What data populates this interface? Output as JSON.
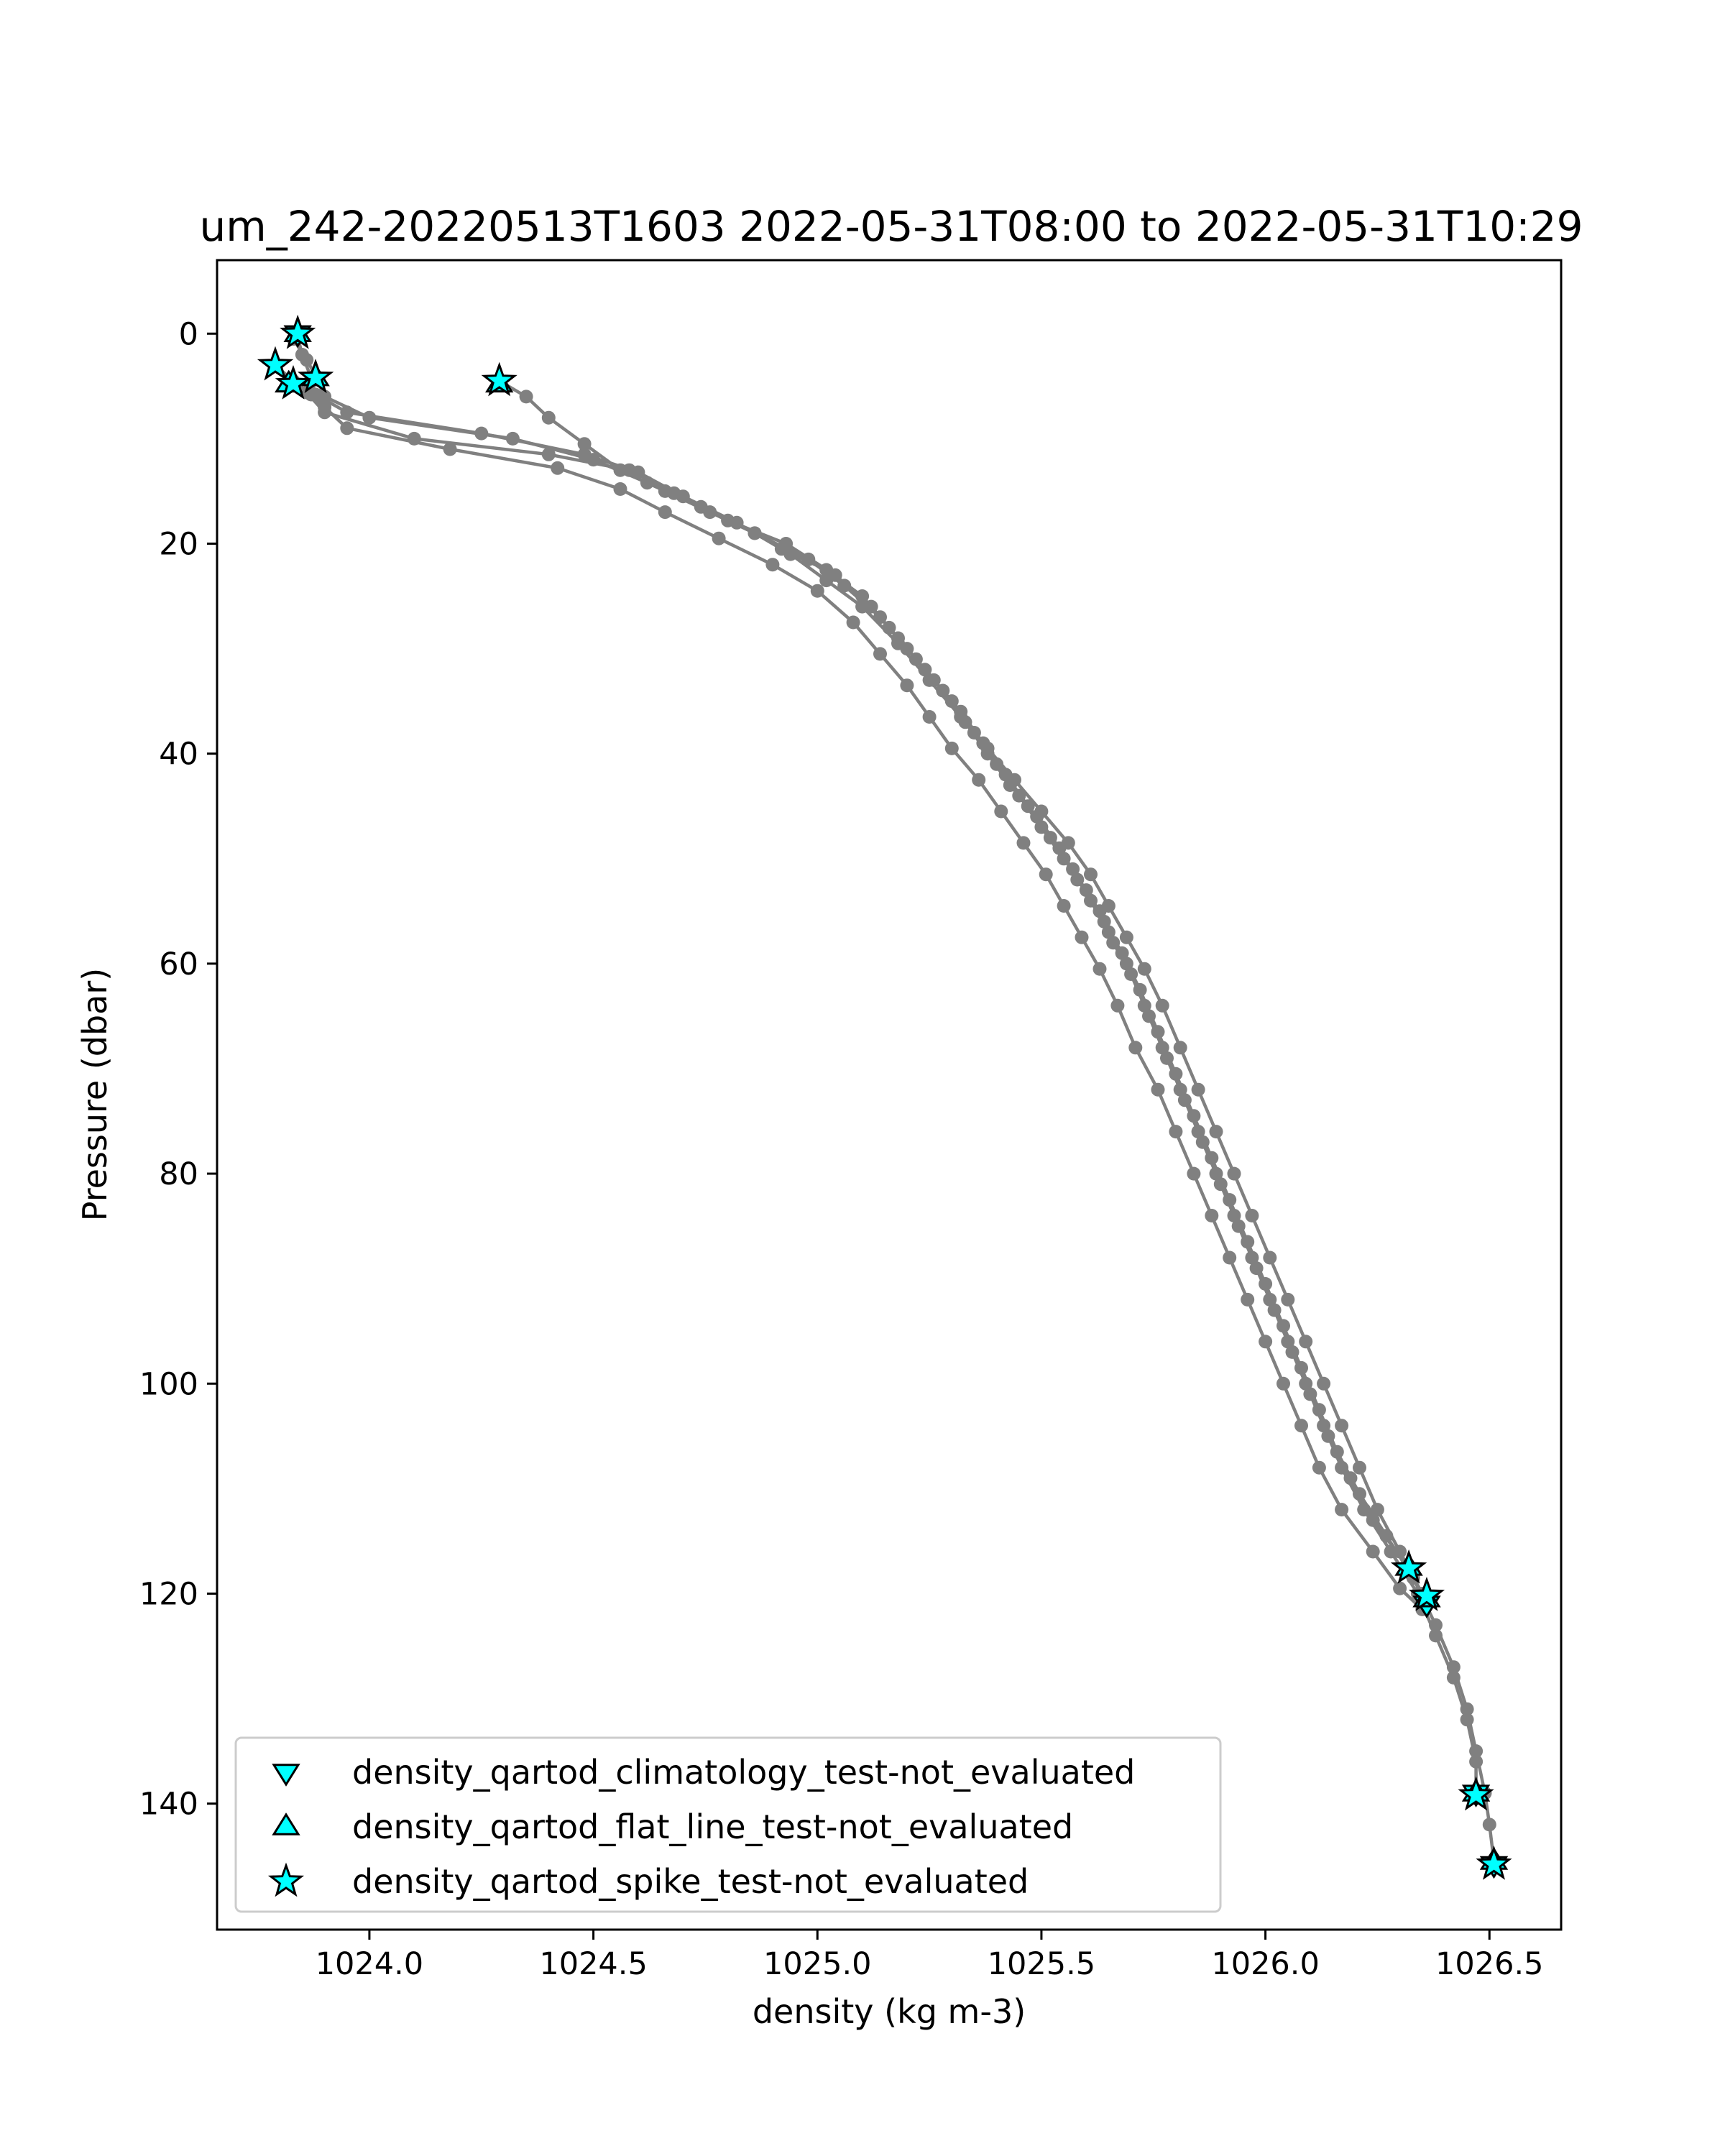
{
  "chart_data": {
    "type": "line",
    "title": "um_242-20220513T1603 2022-05-31T08:00 to 2022-05-31T10:29",
    "xlabel": "density (kg m-3)",
    "ylabel": "Pressure (dbar)",
    "xlim": [
      1023.66,
      1026.66
    ],
    "ylim": [
      152,
      -7
    ],
    "y_inverted": true,
    "xticks": [
      1024.0,
      1024.5,
      1025.0,
      1025.5,
      1026.0,
      1026.5
    ],
    "yticks": [
      0,
      20,
      40,
      60,
      80,
      100,
      120,
      140
    ],
    "xtick_labels": [
      "1024.0",
      "1024.5",
      "1025.0",
      "1025.5",
      "1026.0",
      "1026.5"
    ],
    "ytick_labels": [
      "0",
      "20",
      "40",
      "60",
      "80",
      "100",
      "120",
      "140"
    ],
    "grid": false,
    "line_color": "#808080",
    "marker_color": "#00ffff",
    "legend_position": "lower-left",
    "series": [
      {
        "points": [
          [
            1023.84,
            0.3
          ],
          [
            1023.85,
            2.0
          ],
          [
            1023.87,
            4.2
          ],
          [
            1023.88,
            5.8
          ],
          [
            1023.95,
            7.5
          ],
          [
            1024.25,
            9.5
          ],
          [
            1024.48,
            11.5
          ],
          [
            1024.6,
            13.2
          ],
          [
            1024.7,
            15.5
          ],
          [
            1024.82,
            18.0
          ],
          [
            1024.92,
            20.5
          ],
          [
            1025.02,
            22.5
          ],
          [
            1025.1,
            25.0
          ],
          [
            1025.16,
            28.0
          ],
          [
            1025.22,
            31.0
          ],
          [
            1025.28,
            34.0
          ],
          [
            1025.33,
            37.0
          ],
          [
            1025.38,
            40.0
          ],
          [
            1025.43,
            43.0
          ],
          [
            1025.49,
            46.0
          ],
          [
            1025.54,
            49.0
          ],
          [
            1025.58,
            52.0
          ],
          [
            1025.63,
            55.0
          ],
          [
            1025.66,
            58.0
          ],
          [
            1025.7,
            61.0
          ],
          [
            1025.74,
            65.0
          ],
          [
            1025.78,
            69.0
          ],
          [
            1025.82,
            73.0
          ],
          [
            1025.86,
            77.0
          ],
          [
            1025.9,
            81.0
          ],
          [
            1025.94,
            85.0
          ],
          [
            1025.98,
            89.0
          ],
          [
            1026.02,
            93.0
          ],
          [
            1026.06,
            97.0
          ],
          [
            1026.1,
            101.0
          ],
          [
            1026.14,
            105.0
          ],
          [
            1026.19,
            109.0
          ],
          [
            1026.24,
            113.0
          ],
          [
            1026.32,
            117.6
          ],
          [
            1026.36,
            121.0
          ]
        ]
      },
      {
        "points": [
          [
            1023.83,
            0.5
          ],
          [
            1023.86,
            2.5
          ],
          [
            1023.88,
            4.0
          ],
          [
            1023.9,
            6.0
          ],
          [
            1024.0,
            8.0
          ],
          [
            1024.32,
            10.0
          ],
          [
            1024.5,
            12.0
          ],
          [
            1024.62,
            14.2
          ],
          [
            1024.74,
            16.5
          ],
          [
            1024.86,
            19.0
          ],
          [
            1024.98,
            21.5
          ],
          [
            1025.06,
            24.0
          ],
          [
            1025.14,
            27.0
          ],
          [
            1025.2,
            30.0
          ],
          [
            1025.26,
            33.0
          ],
          [
            1025.32,
            36.0
          ],
          [
            1025.37,
            39.0
          ],
          [
            1025.42,
            42.0
          ],
          [
            1025.47,
            45.0
          ],
          [
            1025.52,
            48.0
          ],
          [
            1025.57,
            51.0
          ],
          [
            1025.61,
            54.0
          ],
          [
            1025.65,
            57.0
          ],
          [
            1025.69,
            60.0
          ],
          [
            1025.73,
            64.0
          ],
          [
            1025.77,
            68.0
          ],
          [
            1025.81,
            72.0
          ],
          [
            1025.85,
            76.0
          ],
          [
            1025.89,
            80.0
          ],
          [
            1025.93,
            84.0
          ],
          [
            1025.97,
            88.0
          ],
          [
            1026.01,
            92.0
          ],
          [
            1026.05,
            96.0
          ],
          [
            1026.09,
            100.0
          ],
          [
            1026.13,
            104.0
          ],
          [
            1026.17,
            108.0
          ],
          [
            1026.22,
            112.0
          ],
          [
            1026.28,
            116.0
          ],
          [
            1026.34,
            120.0
          ],
          [
            1026.38,
            124.0
          ],
          [
            1026.42,
            128.0
          ],
          [
            1026.45,
            132.0
          ],
          [
            1026.47,
            136.0
          ],
          [
            1026.47,
            139.2
          ]
        ]
      },
      {
        "points": [
          [
            1023.79,
            3.0
          ],
          [
            1023.83,
            4.5
          ],
          [
            1023.87,
            5.8
          ],
          [
            1023.9,
            7.0
          ],
          [
            1023.95,
            9.0
          ],
          [
            1024.18,
            11.0
          ],
          [
            1024.42,
            12.8
          ],
          [
            1024.56,
            14.8
          ],
          [
            1024.66,
            17.0
          ],
          [
            1024.78,
            19.5
          ],
          [
            1024.9,
            22.0
          ],
          [
            1025.0,
            24.5
          ],
          [
            1025.08,
            27.5
          ],
          [
            1025.14,
            30.5
          ],
          [
            1025.2,
            33.5
          ],
          [
            1025.25,
            36.5
          ],
          [
            1025.3,
            39.5
          ],
          [
            1025.36,
            42.5
          ],
          [
            1025.41,
            45.5
          ],
          [
            1025.46,
            48.5
          ],
          [
            1025.51,
            51.5
          ],
          [
            1025.55,
            54.5
          ],
          [
            1025.59,
            57.5
          ],
          [
            1025.63,
            60.5
          ],
          [
            1025.67,
            64.0
          ],
          [
            1025.71,
            68.0
          ],
          [
            1025.76,
            72.0
          ],
          [
            1025.8,
            76.0
          ],
          [
            1025.84,
            80.0
          ],
          [
            1025.88,
            84.0
          ],
          [
            1025.92,
            88.0
          ],
          [
            1025.96,
            92.0
          ],
          [
            1026.0,
            96.0
          ],
          [
            1026.04,
            100.0
          ],
          [
            1026.08,
            104.0
          ],
          [
            1026.12,
            108.0
          ],
          [
            1026.17,
            112.0
          ],
          [
            1026.24,
            116.0
          ],
          [
            1026.3,
            119.5
          ],
          [
            1026.35,
            121.5
          ]
        ]
      },
      {
        "points": [
          [
            1023.82,
            4.8
          ],
          [
            1023.86,
            5.6
          ],
          [
            1023.9,
            7.5
          ],
          [
            1024.1,
            10.0
          ],
          [
            1024.4,
            11.5
          ],
          [
            1024.58,
            13.0
          ],
          [
            1024.68,
            15.2
          ],
          [
            1024.8,
            17.8
          ],
          [
            1024.93,
            20.0
          ],
          [
            1025.04,
            23.0
          ],
          [
            1025.12,
            26.0
          ],
          [
            1025.18,
            29.0
          ],
          [
            1025.24,
            32.0
          ],
          [
            1025.3,
            35.0
          ],
          [
            1025.35,
            38.0
          ],
          [
            1025.4,
            41.0
          ],
          [
            1025.45,
            44.0
          ],
          [
            1025.5,
            47.0
          ],
          [
            1025.55,
            50.0
          ],
          [
            1025.6,
            53.0
          ],
          [
            1025.64,
            56.0
          ],
          [
            1025.68,
            59.0
          ],
          [
            1025.72,
            62.5
          ],
          [
            1025.76,
            66.5
          ],
          [
            1025.8,
            70.5
          ],
          [
            1025.84,
            74.5
          ],
          [
            1025.88,
            78.5
          ],
          [
            1025.92,
            82.5
          ],
          [
            1025.96,
            86.5
          ],
          [
            1026.0,
            90.5
          ],
          [
            1026.04,
            94.5
          ],
          [
            1026.08,
            98.5
          ],
          [
            1026.12,
            102.5
          ],
          [
            1026.16,
            106.5
          ],
          [
            1026.21,
            110.5
          ],
          [
            1026.27,
            114.5
          ],
          [
            1026.33,
            118.5
          ],
          [
            1026.38,
            123.0
          ],
          [
            1026.42,
            127.0
          ],
          [
            1026.45,
            131.0
          ],
          [
            1026.47,
            135.0
          ],
          [
            1026.49,
            139.0
          ],
          [
            1026.5,
            142.0
          ],
          [
            1026.51,
            145.5
          ]
        ]
      },
      {
        "points": [
          [
            1024.29,
            4.5
          ],
          [
            1024.35,
            6.0
          ],
          [
            1024.4,
            8.0
          ],
          [
            1024.48,
            10.5
          ],
          [
            1024.56,
            13.0
          ],
          [
            1024.66,
            15.0
          ],
          [
            1024.76,
            17.0
          ],
          [
            1024.86,
            19.0
          ],
          [
            1024.94,
            21.0
          ],
          [
            1025.02,
            23.5
          ],
          [
            1025.1,
            26.0
          ],
          [
            1025.18,
            29.5
          ],
          [
            1025.25,
            33.0
          ],
          [
            1025.32,
            36.5
          ],
          [
            1025.38,
            39.5
          ],
          [
            1025.44,
            42.5
          ],
          [
            1025.5,
            45.5
          ],
          [
            1025.56,
            48.5
          ],
          [
            1025.61,
            51.5
          ],
          [
            1025.65,
            54.5
          ],
          [
            1025.69,
            57.5
          ],
          [
            1025.73,
            60.5
          ],
          [
            1025.77,
            64.0
          ],
          [
            1025.81,
            68.0
          ],
          [
            1025.85,
            72.0
          ],
          [
            1025.89,
            76.0
          ],
          [
            1025.93,
            80.0
          ],
          [
            1025.97,
            84.0
          ],
          [
            1026.01,
            88.0
          ],
          [
            1026.05,
            92.0
          ],
          [
            1026.09,
            96.0
          ],
          [
            1026.13,
            100.0
          ],
          [
            1026.17,
            104.0
          ],
          [
            1026.21,
            108.0
          ],
          [
            1026.25,
            112.0
          ],
          [
            1026.3,
            116.0
          ],
          [
            1026.35,
            120.0
          ]
        ]
      }
    ],
    "flagged_points": [
      {
        "test": "climatology",
        "points": [
          [
            1023.84,
            0.0
          ],
          [
            1026.47,
            139.0
          ],
          [
            1026.51,
            145.8
          ],
          [
            1026.36,
            121.0
          ]
        ]
      },
      {
        "test": "flat_line",
        "points": [
          [
            1023.84,
            0.0
          ],
          [
            1023.82,
            4.8
          ],
          [
            1023.88,
            4.2
          ],
          [
            1024.29,
            4.8
          ],
          [
            1026.32,
            117.5
          ],
          [
            1026.36,
            120.5
          ],
          [
            1026.47,
            139.0
          ],
          [
            1026.51,
            145.5
          ]
        ]
      },
      {
        "test": "spike",
        "points": [
          [
            1023.84,
            0.0
          ],
          [
            1023.79,
            3.0
          ],
          [
            1023.88,
            4.2
          ],
          [
            1023.83,
            4.8
          ],
          [
            1024.29,
            4.5
          ],
          [
            1026.32,
            117.6
          ],
          [
            1026.36,
            120.2
          ],
          [
            1026.47,
            139.2
          ],
          [
            1026.51,
            145.8
          ]
        ]
      }
    ],
    "legend": [
      {
        "marker": "triangle-down",
        "label": "density_qartod_climatology_test-not_evaluated"
      },
      {
        "marker": "triangle-up",
        "label": "density_qartod_flat_line_test-not_evaluated"
      },
      {
        "marker": "star",
        "label": "density_qartod_spike_test-not_evaluated"
      }
    ]
  }
}
